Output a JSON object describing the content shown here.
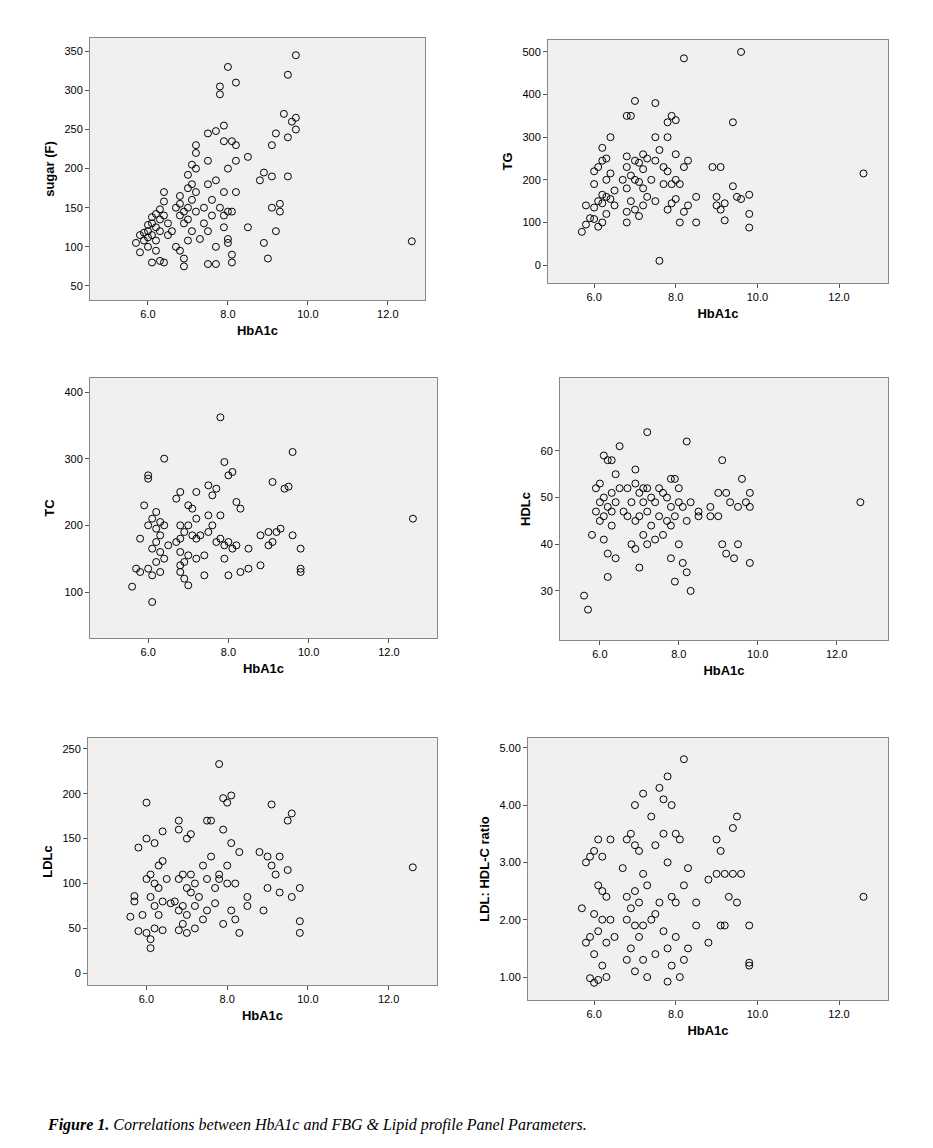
{
  "chart_data": [
    {
      "type": "scatter",
      "xlabel": "HbA1c",
      "ylabel": "sugar (F)",
      "marker": "circle-open",
      "color": "#000000",
      "grid": false,
      "xlim": [
        4.55,
        12.93
      ],
      "xticks": [
        {
          "value": 6,
          "label": "6.0"
        },
        {
          "value": 8,
          "label": "8.0"
        },
        {
          "value": 10,
          "label": "10.0"
        },
        {
          "value": 12,
          "label": "12.0"
        }
      ],
      "ylim": [
        32,
        367
      ],
      "yticks": [
        50,
        100,
        150,
        200,
        250,
        300,
        350
      ],
      "x": [
        5.7,
        5.8,
        5.8,
        5.9,
        5.9,
        6.0,
        6.0,
        6.0,
        6.0,
        6.1,
        6.1,
        6.1,
        6.1,
        6.2,
        6.2,
        6.2,
        6.2,
        6.3,
        6.3,
        6.3,
        6.3,
        6.4,
        6.4,
        6.4,
        6.4,
        6.5,
        6.5,
        6.6,
        6.7,
        6.7,
        6.8,
        6.8,
        6.8,
        6.8,
        6.9,
        6.9,
        6.9,
        6.9,
        7.0,
        7.0,
        7.0,
        7.0,
        7.0,
        7.1,
        7.1,
        7.1,
        7.1,
        7.2,
        7.2,
        7.2,
        7.2,
        7.2,
        7.3,
        7.4,
        7.4,
        7.5,
        7.5,
        7.5,
        7.5,
        7.5,
        7.6,
        7.6,
        7.7,
        7.7,
        7.7,
        7.7,
        7.8,
        7.8,
        7.8,
        7.9,
        7.9,
        7.9,
        7.9,
        7.9,
        8.0,
        8.0,
        8.0,
        8.0,
        8.0,
        8.1,
        8.1,
        8.1,
        8.1,
        8.2,
        8.2,
        8.2,
        8.2,
        8.5,
        8.5,
        8.8,
        8.9,
        8.9,
        9.0,
        9.1,
        9.1,
        9.1,
        9.2,
        9.2,
        9.3,
        9.3,
        9.4,
        9.5,
        9.5,
        9.5,
        9.6,
        9.7,
        9.7,
        9.7,
        12.6
      ],
      "values": [
        105,
        93,
        115,
        118,
        108,
        120,
        128,
        112,
        100,
        138,
        130,
        115,
        80,
        142,
        125,
        108,
        95,
        148,
        135,
        82,
        120,
        170,
        158,
        140,
        80,
        115,
        130,
        120,
        150,
        100,
        165,
        155,
        140,
        95,
        145,
        130,
        85,
        75,
        192,
        175,
        150,
        135,
        108,
        205,
        180,
        160,
        120,
        230,
        220,
        200,
        170,
        145,
        110,
        150,
        130,
        245,
        210,
        180,
        120,
        78,
        160,
        140,
        248,
        185,
        100,
        78,
        295,
        305,
        150,
        255,
        235,
        170,
        140,
        125,
        330,
        200,
        145,
        110,
        105,
        235,
        145,
        90,
        80,
        310,
        230,
        210,
        170,
        215,
        125,
        185,
        195,
        105,
        85,
        230,
        190,
        150,
        245,
        120,
        155,
        145,
        270,
        320,
        240,
        190,
        260,
        345,
        265,
        250,
        107
      ]
    },
    {
      "type": "scatter",
      "xlabel": "HbA1c",
      "ylabel": "TG",
      "marker": "circle-open",
      "color": "#000000",
      "grid": false,
      "xlim": [
        4.87,
        13.2
      ],
      "xticks": [
        {
          "value": 6,
          "label": "6.0"
        },
        {
          "value": 8,
          "label": "8.0"
        },
        {
          "value": 10,
          "label": "10.0"
        },
        {
          "value": 12,
          "label": "12.0"
        }
      ],
      "ylim": [
        -42,
        528
      ],
      "yticks": [
        0,
        100,
        200,
        300,
        400,
        500
      ],
      "x": [
        5.7,
        5.8,
        5.8,
        5.9,
        6.0,
        6.0,
        6.0,
        6.0,
        6.1,
        6.1,
        6.1,
        6.2,
        6.2,
        6.2,
        6.2,
        6.2,
        6.3,
        6.3,
        6.3,
        6.3,
        6.4,
        6.4,
        6.4,
        6.5,
        6.5,
        6.7,
        6.8,
        6.8,
        6.8,
        6.8,
        6.8,
        6.8,
        6.9,
        6.9,
        6.9,
        7.0,
        7.0,
        7.0,
        7.0,
        7.1,
        7.1,
        7.1,
        7.2,
        7.2,
        7.2,
        7.2,
        7.3,
        7.3,
        7.4,
        7.5,
        7.5,
        7.5,
        7.5,
        7.6,
        7.6,
        7.7,
        7.7,
        7.8,
        7.8,
        7.8,
        7.8,
        7.9,
        7.9,
        7.9,
        8.0,
        8.0,
        8.0,
        8.0,
        8.1,
        8.1,
        8.2,
        8.2,
        8.2,
        8.3,
        8.3,
        8.5,
        8.5,
        8.9,
        9.0,
        9.0,
        9.1,
        9.1,
        9.2,
        9.2,
        9.4,
        9.4,
        9.5,
        9.6,
        9.6,
        9.8,
        9.8,
        9.8,
        12.6
      ],
      "values": [
        78,
        95,
        140,
        110,
        220,
        190,
        135,
        108,
        230,
        150,
        90,
        275,
        245,
        165,
        145,
        100,
        250,
        200,
        160,
        120,
        300,
        215,
        155,
        175,
        140,
        200,
        350,
        255,
        230,
        180,
        125,
        100,
        350,
        210,
        150,
        385,
        245,
        200,
        130,
        240,
        195,
        115,
        260,
        225,
        180,
        140,
        250,
        160,
        200,
        380,
        300,
        245,
        150,
        270,
        10,
        230,
        190,
        335,
        300,
        220,
        130,
        350,
        190,
        145,
        340,
        260,
        200,
        155,
        190,
        100,
        485,
        230,
        125,
        245,
        140,
        160,
        100,
        230,
        160,
        140,
        230,
        130,
        145,
        105,
        335,
        185,
        160,
        500,
        155,
        165,
        120,
        88,
        215
      ]
    },
    {
      "type": "scatter",
      "xlabel": "HbA1c",
      "ylabel": "TC",
      "marker": "circle-open",
      "color": "#000000",
      "grid": false,
      "xlim": [
        4.55,
        13.2
      ],
      "xticks": [
        {
          "value": 6,
          "label": "6.0"
        },
        {
          "value": 8,
          "label": "8.0"
        },
        {
          "value": 10,
          "label": "10.0"
        },
        {
          "value": 12,
          "label": "12.0"
        }
      ],
      "ylim": [
        31,
        421
      ],
      "yticks": [
        100,
        200,
        300,
        400
      ],
      "x": [
        5.6,
        5.7,
        5.8,
        5.8,
        5.9,
        6.0,
        6.0,
        6.0,
        6.0,
        6.1,
        6.1,
        6.1,
        6.1,
        6.2,
        6.2,
        6.2,
        6.2,
        6.3,
        6.3,
        6.3,
        6.3,
        6.4,
        6.4,
        6.4,
        6.5,
        6.7,
        6.7,
        6.8,
        6.8,
        6.8,
        6.8,
        6.8,
        6.8,
        6.9,
        6.9,
        6.9,
        7.0,
        7.0,
        7.0,
        7.0,
        7.1,
        7.1,
        7.2,
        7.2,
        7.2,
        7.2,
        7.3,
        7.4,
        7.4,
        7.5,
        7.5,
        7.5,
        7.6,
        7.6,
        7.7,
        7.7,
        7.8,
        7.8,
        7.8,
        7.9,
        7.9,
        7.9,
        8.0,
        8.0,
        8.0,
        8.1,
        8.1,
        8.2,
        8.2,
        8.3,
        8.3,
        8.5,
        8.5,
        8.8,
        8.8,
        9.0,
        9.0,
        9.1,
        9.1,
        9.2,
        9.3,
        9.4,
        9.5,
        9.6,
        9.6,
        9.8,
        9.8,
        9.8,
        12.6
      ],
      "values": [
        108,
        135,
        130,
        180,
        230,
        275,
        270,
        200,
        135,
        125,
        85,
        210,
        165,
        220,
        195,
        175,
        145,
        205,
        185,
        160,
        130,
        300,
        200,
        150,
        170,
        240,
        175,
        250,
        200,
        180,
        160,
        140,
        130,
        190,
        145,
        120,
        230,
        200,
        155,
        110,
        225,
        185,
        250,
        210,
        180,
        150,
        185,
        155,
        125,
        260,
        215,
        190,
        245,
        200,
        255,
        175,
        362,
        215,
        180,
        295,
        170,
        150,
        275,
        175,
        125,
        280,
        165,
        235,
        170,
        225,
        130,
        165,
        135,
        185,
        140,
        190,
        170,
        265,
        175,
        190,
        195,
        255,
        258,
        310,
        185,
        165,
        135,
        130,
        210
      ]
    },
    {
      "type": "scatter",
      "xlabel": "HbA1c",
      "ylabel": "HDLc",
      "marker": "circle-open",
      "color": "#000000",
      "grid": false,
      "xlim": [
        4.99,
        13.3
      ],
      "xticks": [
        {
          "value": 6,
          "label": "6.0"
        },
        {
          "value": 8,
          "label": "8.0"
        },
        {
          "value": 10,
          "label": "10.0"
        },
        {
          "value": 12,
          "label": "12.0"
        }
      ],
      "ylim": [
        19.5,
        75.6
      ],
      "yticks": [
        30,
        40,
        50,
        60
      ],
      "x": [
        5.6,
        5.7,
        5.8,
        5.9,
        5.9,
        6.0,
        6.0,
        6.0,
        6.1,
        6.1,
        6.1,
        6.1,
        6.2,
        6.2,
        6.2,
        6.2,
        6.3,
        6.3,
        6.3,
        6.3,
        6.4,
        6.4,
        6.4,
        6.5,
        6.5,
        6.6,
        6.7,
        6.7,
        6.8,
        6.8,
        6.9,
        6.9,
        6.9,
        6.9,
        7.0,
        7.0,
        7.0,
        7.1,
        7.1,
        7.1,
        7.2,
        7.2,
        7.2,
        7.2,
        7.3,
        7.3,
        7.4,
        7.4,
        7.5,
        7.5,
        7.6,
        7.6,
        7.7,
        7.7,
        7.8,
        7.8,
        7.8,
        7.8,
        7.9,
        7.9,
        7.9,
        8.0,
        8.0,
        8.0,
        8.1,
        8.1,
        8.2,
        8.2,
        8.2,
        8.3,
        8.3,
        8.5,
        8.5,
        8.8,
        8.8,
        9.0,
        9.0,
        9.1,
        9.1,
        9.2,
        9.2,
        9.3,
        9.4,
        9.5,
        9.5,
        9.6,
        9.7,
        9.8,
        9.8,
        9.8,
        12.6
      ],
      "values": [
        29,
        26,
        42,
        47,
        52,
        49,
        45,
        53,
        59,
        50,
        46,
        41,
        58,
        48,
        38,
        33,
        58,
        51,
        47,
        44,
        55,
        49,
        37,
        61,
        52,
        47,
        52,
        46,
        49,
        40,
        56,
        53,
        45,
        39,
        51,
        46,
        35,
        52,
        49,
        42,
        64,
        52,
        47,
        40,
        50,
        44,
        49,
        41,
        52,
        46,
        51,
        42,
        50,
        45,
        54,
        48,
        44,
        37,
        54,
        46,
        32,
        52,
        49,
        40,
        48,
        36,
        62,
        45,
        34,
        49,
        30,
        47,
        46,
        48,
        46,
        51,
        46,
        58,
        40,
        51,
        38,
        49,
        37,
        48,
        40,
        54,
        49,
        51,
        48,
        36,
        49
      ]
    },
    {
      "type": "scatter",
      "xlabel": "HbA1c",
      "ylabel": "LDLc",
      "marker": "circle-open",
      "color": "#000000",
      "grid": false,
      "xlim": [
        4.55,
        13.2
      ],
      "xticks": [
        {
          "value": 6,
          "label": "6.0"
        },
        {
          "value": 8,
          "label": "8.0"
        },
        {
          "value": 10,
          "label": "10.0"
        },
        {
          "value": 12,
          "label": "12.0"
        }
      ],
      "ylim": [
        -13,
        262
      ],
      "yticks": [
        0,
        50,
        100,
        150,
        200,
        250
      ],
      "x": [
        5.6,
        5.7,
        5.7,
        5.8,
        5.8,
        5.9,
        6.0,
        6.0,
        6.0,
        6.0,
        6.1,
        6.1,
        6.1,
        6.1,
        6.2,
        6.2,
        6.2,
        6.2,
        6.3,
        6.3,
        6.3,
        6.4,
        6.4,
        6.4,
        6.4,
        6.5,
        6.6,
        6.7,
        6.8,
        6.8,
        6.8,
        6.8,
        6.8,
        6.9,
        6.9,
        6.9,
        7.0,
        7.0,
        7.0,
        7.0,
        7.1,
        7.1,
        7.1,
        7.2,
        7.2,
        7.2,
        7.3,
        7.4,
        7.4,
        7.5,
        7.5,
        7.5,
        7.6,
        7.6,
        7.7,
        7.7,
        7.8,
        7.8,
        7.8,
        7.9,
        7.9,
        7.9,
        8.0,
        8.0,
        8.0,
        8.1,
        8.1,
        8.1,
        8.2,
        8.2,
        8.3,
        8.3,
        8.5,
        8.5,
        8.8,
        8.9,
        9.0,
        9.0,
        9.1,
        9.1,
        9.2,
        9.3,
        9.3,
        9.5,
        9.5,
        9.6,
        9.6,
        9.8,
        9.8,
        9.8,
        12.6
      ],
      "values": [
        63,
        86,
        80,
        47,
        140,
        65,
        190,
        150,
        105,
        45,
        110,
        85,
        28,
        38,
        145,
        100,
        75,
        50,
        120,
        95,
        65,
        158,
        125,
        80,
        48,
        105,
        78,
        80,
        170,
        160,
        105,
        70,
        48,
        110,
        75,
        55,
        150,
        95,
        65,
        45,
        155,
        110,
        90,
        100,
        75,
        50,
        85,
        120,
        60,
        170,
        105,
        70,
        170,
        130,
        95,
        78,
        233,
        110,
        105,
        195,
        160,
        55,
        190,
        120,
        100,
        198,
        145,
        70,
        100,
        60,
        135,
        45,
        85,
        75,
        135,
        70,
        130,
        95,
        188,
        120,
        110,
        130,
        90,
        170,
        115,
        178,
        85,
        95,
        58,
        45,
        118
      ]
    },
    {
      "type": "scatter",
      "xlabel": "HbA1c",
      "ylabel": "LDL: HDL-C ratio",
      "marker": "circle-open",
      "color": "#000000",
      "grid": false,
      "xlim": [
        4.38,
        13.2
      ],
      "xticks": [
        {
          "value": 6,
          "label": "6.0"
        },
        {
          "value": 8,
          "label": "8.0"
        },
        {
          "value": 10,
          "label": "10.0"
        },
        {
          "value": 12,
          "label": "12.0"
        }
      ],
      "ylim": [
        0.6,
        5.17
      ],
      "yticks": [
        {
          "value": 1,
          "label": "1.00"
        },
        {
          "value": 2,
          "label": "2.00"
        },
        {
          "value": 3,
          "label": "3.00"
        },
        {
          "value": 4,
          "label": "4.00"
        },
        {
          "value": 5,
          "label": "5.00"
        }
      ],
      "x": [
        5.7,
        5.8,
        5.8,
        5.9,
        5.9,
        5.9,
        6.0,
        6.0,
        6.0,
        6.0,
        6.1,
        6.1,
        6.1,
        6.1,
        6.2,
        6.2,
        6.2,
        6.2,
        6.3,
        6.3,
        6.3,
        6.4,
        6.4,
        6.5,
        6.7,
        6.8,
        6.8,
        6.8,
        6.8,
        6.9,
        6.9,
        6.9,
        7.0,
        7.0,
        7.0,
        7.0,
        7.0,
        7.1,
        7.1,
        7.1,
        7.2,
        7.2,
        7.2,
        7.2,
        7.3,
        7.3,
        7.4,
        7.4,
        7.5,
        7.5,
        7.5,
        7.6,
        7.6,
        7.7,
        7.7,
        7.7,
        7.8,
        7.8,
        7.8,
        7.8,
        7.9,
        7.9,
        7.9,
        8.0,
        8.0,
        8.0,
        8.1,
        8.1,
        8.2,
        8.2,
        8.2,
        8.3,
        8.3,
        8.5,
        8.5,
        8.8,
        8.8,
        9.0,
        9.0,
        9.1,
        9.1,
        9.2,
        9.2,
        9.3,
        9.4,
        9.4,
        9.5,
        9.5,
        9.6,
        9.8,
        9.8,
        9.8,
        12.6
      ],
      "values": [
        2.2,
        3.0,
        1.6,
        3.1,
        1.7,
        0.98,
        3.2,
        2.1,
        1.4,
        0.9,
        3.4,
        2.6,
        1.8,
        0.95,
        3.1,
        2.5,
        2.0,
        1.2,
        2.4,
        1.6,
        1.0,
        3.4,
        2.0,
        1.7,
        2.9,
        3.4,
        2.4,
        2.0,
        1.3,
        3.5,
        2.2,
        1.5,
        4.0,
        3.3,
        2.5,
        1.9,
        1.1,
        3.2,
        2.3,
        1.7,
        4.2,
        2.8,
        1.9,
        1.3,
        2.6,
        1.0,
        3.8,
        2.0,
        3.3,
        2.1,
        1.4,
        4.3,
        2.3,
        4.1,
        3.5,
        1.8,
        4.5,
        3.0,
        1.5,
        0.92,
        4.0,
        2.4,
        1.2,
        3.5,
        2.3,
        1.7,
        3.4,
        1.0,
        4.8,
        2.6,
        1.3,
        2.9,
        1.5,
        2.3,
        1.9,
        1.6,
        2.7,
        3.4,
        2.8,
        3.2,
        1.9,
        2.8,
        1.9,
        2.4,
        3.6,
        2.8,
        3.8,
        2.3,
        2.8,
        1.9,
        1.25,
        1.2,
        2.4
      ]
    }
  ],
  "caption_label": "Figure 1.",
  "caption": "Correlations between HbA1c and FBG & Lipid profile Panel Parameters."
}
